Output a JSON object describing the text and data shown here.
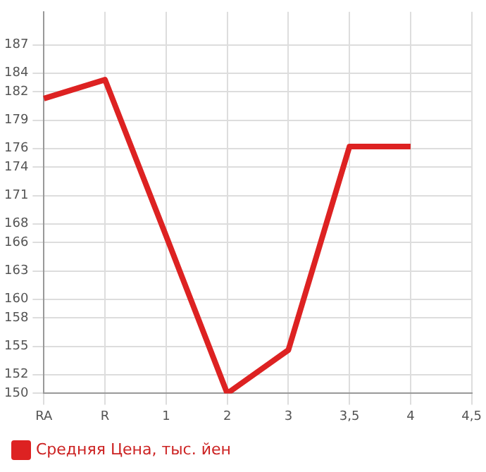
{
  "chart_data": {
    "type": "line",
    "categories": [
      "RA",
      "R",
      "1",
      "2",
      "3",
      "3,5",
      "4",
      "4,5"
    ],
    "series": [
      {
        "name": "Средняя Цена, тыс. йен",
        "color": "#dd2222",
        "values": [
          181.3,
          183.3,
          166.7,
          150,
          154.6,
          176.2,
          176.2,
          null
        ]
      }
    ],
    "ylim": [
      150,
      190.5
    ],
    "yticks": [
      150,
      152,
      155,
      158,
      160,
      163,
      166,
      168,
      171,
      174,
      176,
      179,
      182,
      184,
      187
    ],
    "grid": true,
    "legend": "bottom left",
    "marker": "none",
    "line_style": "solid"
  }
}
